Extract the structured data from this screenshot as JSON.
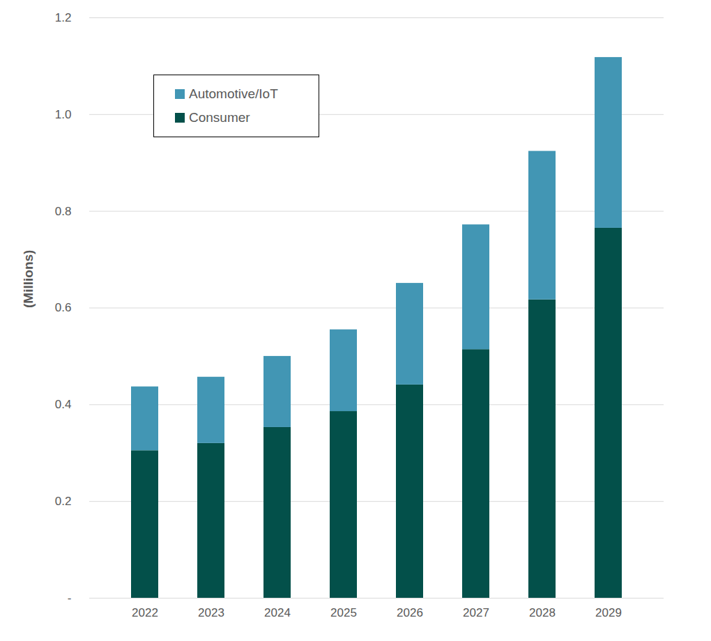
{
  "chart_data": {
    "type": "bar",
    "stacked": true,
    "grid": true,
    "legend": "upper left",
    "y_label": "(Millions)",
    "categories": [
      "2022",
      "2023",
      "2024",
      "2025",
      "2026",
      "2027",
      "2028",
      "2029"
    ],
    "series": [
      {
        "name": "Consumer",
        "color": "#03504a",
        "values": [
          0.305,
          0.32,
          0.353,
          0.386,
          0.441,
          0.514,
          0.617,
          0.765
        ]
      },
      {
        "name": "Automotive/IoT",
        "color": "#4296b4",
        "values": [
          0.132,
          0.137,
          0.147,
          0.169,
          0.21,
          0.258,
          0.307,
          0.353
        ]
      }
    ],
    "ylim": [
      0,
      1.2
    ],
    "yticks": [
      {
        "value": 0,
        "label": "-"
      },
      0.2,
      0.4,
      0.6,
      0.8,
      {
        "value": 1,
        "label": "1.0"
      },
      1.2
    ]
  }
}
